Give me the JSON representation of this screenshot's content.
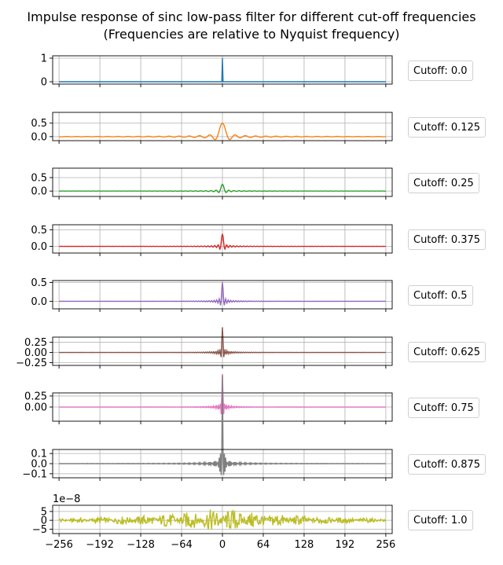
{
  "title": "Impulse response of sinc low-pass filter for different cut-off frequencies",
  "subtitle": "(Frequencies are relative to Nyquist frequency)",
  "chart_data": {
    "type": "line",
    "title": "Impulse response of sinc low-pass filter for different cut-off frequencies",
    "subtitle": "(Frequencies are relative to Nyquist frequency)",
    "xlim": [
      -266,
      266
    ],
    "xticks": [
      -256,
      -192,
      -128,
      -64,
      0,
      64,
      128,
      192,
      256
    ],
    "xtick_labels": [
      "−256",
      "−192",
      "−128",
      "−64",
      "0",
      "64",
      "128",
      "192",
      "256"
    ],
    "grid": true,
    "legend_placement": "right of each subplot",
    "subplots": [
      {
        "legend": "Cutoff: 0.0",
        "cutoff": 0.0,
        "color": "#1f77b4",
        "ylim": [
          -0.1,
          1.1
        ],
        "yticks": [
          0,
          1
        ],
        "ytick_labels": [
          "0",
          "1"
        ],
        "offset_label": ""
      },
      {
        "legend": "Cutoff: 0.125",
        "cutoff": 0.125,
        "color": "#ff7f0e",
        "ylim": [
          -0.15,
          0.9
        ],
        "yticks": [
          0,
          0.5
        ],
        "ytick_labels": [
          "0.0",
          "0.5"
        ],
        "offset_label": ""
      },
      {
        "legend": "Cutoff: 0.25",
        "cutoff": 0.25,
        "color": "#2ca02c",
        "ylim": [
          -0.2,
          0.85
        ],
        "yticks": [
          0,
          0.5
        ],
        "ytick_labels": [
          "0.0",
          "0.5"
        ],
        "offset_label": ""
      },
      {
        "legend": "Cutoff: 0.375",
        "cutoff": 0.375,
        "color": "#d62728",
        "ylim": [
          -0.2,
          0.65
        ],
        "yticks": [
          0,
          0.5
        ],
        "ytick_labels": [
          "0.0",
          "0.5"
        ],
        "offset_label": ""
      },
      {
        "legend": "Cutoff: 0.5",
        "cutoff": 0.5,
        "color": "#9467bd",
        "ylim": [
          -0.2,
          0.55
        ],
        "yticks": [
          0,
          0.5
        ],
        "ytick_labels": [
          "0.0",
          "0.5"
        ],
        "offset_label": ""
      },
      {
        "legend": "Cutoff: 0.625",
        "cutoff": 0.625,
        "color": "#8c564b",
        "ylim": [
          -0.32,
          0.38
        ],
        "yticks": [
          -0.25,
          0,
          0.25
        ],
        "ytick_labels": [
          "−0.25",
          "0.00",
          "0.25"
        ],
        "offset_label": ""
      },
      {
        "legend": "Cutoff: 0.75",
        "cutoff": 0.75,
        "color": "#e377c2",
        "ylim": [
          -0.32,
          0.32
        ],
        "yticks": [
          0,
          0.25
        ],
        "ytick_labels": [
          "0.00",
          "0.25"
        ],
        "offset_label": ""
      },
      {
        "legend": "Cutoff: 0.875",
        "cutoff": 0.875,
        "color": "#7f7f7f",
        "ylim": [
          -0.14,
          0.14
        ],
        "yticks": [
          -0.1,
          0,
          0.1
        ],
        "ytick_labels": [
          "−0.1",
          "0.0",
          "0.1"
        ],
        "offset_label": ""
      },
      {
        "legend": "Cutoff: 1.0",
        "cutoff": 1.0,
        "color": "#bcbd22",
        "ylim": [
          -7.5,
          8.5
        ],
        "yticks": [
          -5,
          0,
          5
        ],
        "ytick_labels": [
          "−5",
          "0",
          "5"
        ],
        "offset_label": "1e−8"
      }
    ]
  }
}
